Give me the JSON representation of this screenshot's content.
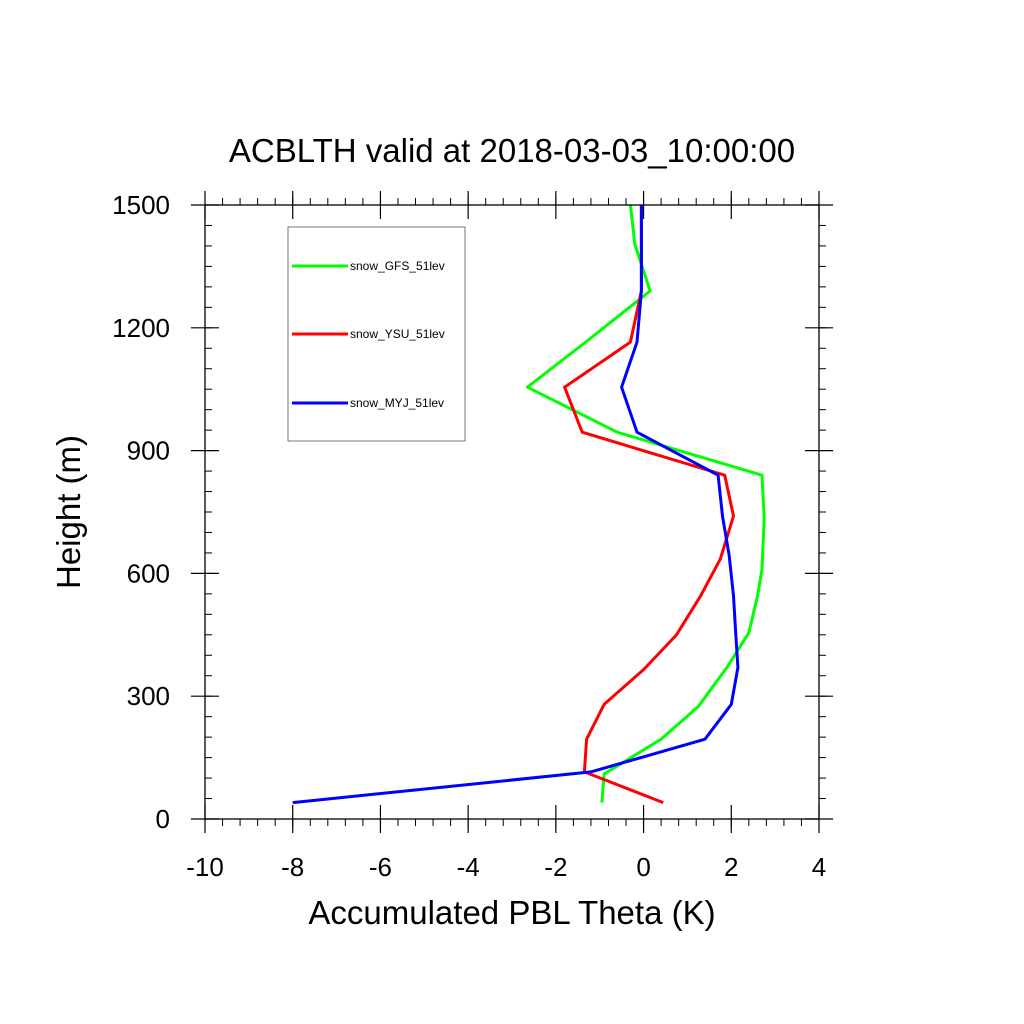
{
  "chart_data": {
    "type": "line",
    "title": "ACBLTH valid at 2018-03-03_10:00:00",
    "xlabel": "Accumulated PBL Theta (K)",
    "ylabel": "Height (m)",
    "xlim": [
      -10,
      4
    ],
    "ylim": [
      0,
      1500
    ],
    "xticks": [
      -10,
      -8,
      -6,
      -4,
      -2,
      0,
      2,
      4
    ],
    "yticks": [
      0,
      300,
      600,
      900,
      1200,
      1500
    ],
    "x_minor_step": 0.4,
    "y_minor_step": 50,
    "grid": false,
    "legend_position": "top-left inside",
    "series": [
      {
        "name": "snow_GFS_51lev",
        "color": "#00ff00",
        "points": [
          [
            -0.95,
            40
          ],
          [
            -0.9,
            110
          ],
          [
            0.4,
            195
          ],
          [
            1.25,
            275
          ],
          [
            1.9,
            370
          ],
          [
            2.4,
            455
          ],
          [
            2.6,
            545
          ],
          [
            2.7,
            610
          ],
          [
            2.75,
            735
          ],
          [
            2.7,
            840
          ],
          [
            -0.6,
            945
          ],
          [
            -2.65,
            1055
          ],
          [
            -1.2,
            1175
          ],
          [
            0.15,
            1290
          ],
          [
            -0.2,
            1405
          ],
          [
            -0.3,
            1500
          ]
        ]
      },
      {
        "name": "snow_YSU_51lev",
        "color": "#ff0000",
        "points": [
          [
            0.45,
            40
          ],
          [
            -1.35,
            115
          ],
          [
            -1.3,
            195
          ],
          [
            -0.9,
            280
          ],
          [
            0.0,
            365
          ],
          [
            0.75,
            450
          ],
          [
            1.3,
            545
          ],
          [
            1.75,
            635
          ],
          [
            2.05,
            740
          ],
          [
            1.85,
            840
          ],
          [
            -1.4,
            945
          ],
          [
            -1.8,
            1055
          ],
          [
            -0.3,
            1165
          ],
          [
            -0.05,
            1290
          ],
          [
            -0.05,
            1400
          ],
          [
            -0.05,
            1500
          ]
        ]
      },
      {
        "name": "snow_MYJ_51lev",
        "color": "#0000ff",
        "points": [
          [
            -8.0,
            40
          ],
          [
            -1.2,
            115
          ],
          [
            1.4,
            195
          ],
          [
            2.0,
            280
          ],
          [
            2.15,
            370
          ],
          [
            2.1,
            455
          ],
          [
            2.05,
            545
          ],
          [
            1.95,
            645
          ],
          [
            1.8,
            740
          ],
          [
            1.7,
            840
          ],
          [
            -0.15,
            945
          ],
          [
            -0.5,
            1055
          ],
          [
            -0.15,
            1165
          ],
          [
            -0.05,
            1290
          ],
          [
            -0.05,
            1400
          ],
          [
            -0.05,
            1500
          ]
        ]
      }
    ]
  }
}
